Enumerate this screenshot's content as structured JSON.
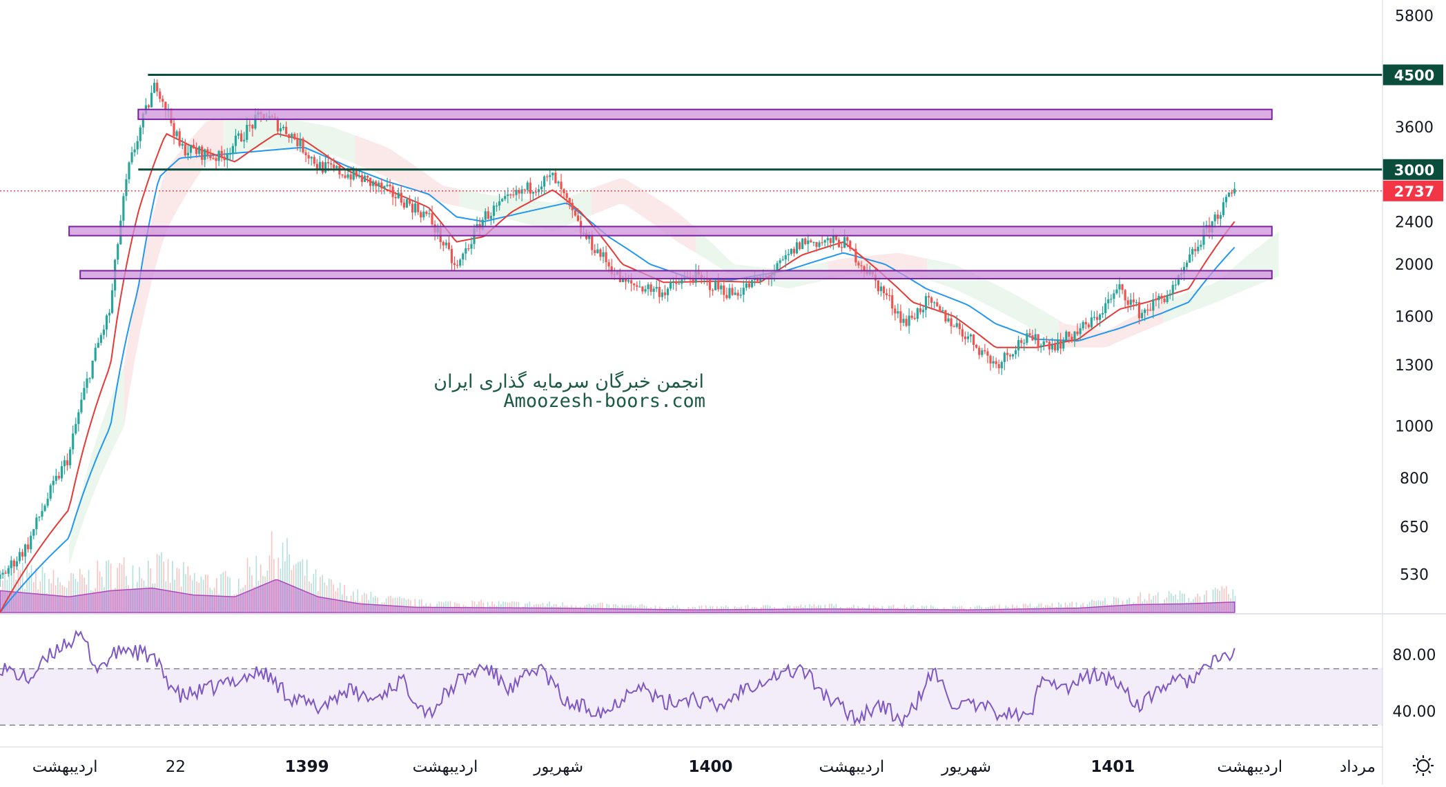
{
  "watermark": {
    "line1": "انجمن خبرگان سرمایه گذاری ایران",
    "line2": "Amoozesh-boors.com"
  },
  "colors": {
    "up": "#26a69a",
    "down": "#ef5350",
    "ma_fast": "#e53935",
    "ma_slow": "#2196f3",
    "resistance_line": "#0b4d3c",
    "zone_fill": "#ce93d8",
    "zone_stroke": "#7b1fa2",
    "volume": "#ba68c8",
    "rsi": "#7e57c2",
    "rsi_band": "#ede7f6",
    "last_price": "#f23645"
  },
  "chart_data": {
    "type": "candlestick",
    "scale": "log",
    "ylim": [
      450,
      6200
    ],
    "y_ticks": [
      5800,
      3600,
      2400,
      2000,
      1600,
      1300,
      1000,
      800,
      650,
      530
    ],
    "time_ticks": [
      {
        "label": "اردیبهشت",
        "bold": false,
        "pos": 0.047
      },
      {
        "label": "22",
        "bold": false,
        "pos": 0.127
      },
      {
        "label": "1399",
        "bold": true,
        "pos": 0.222
      },
      {
        "label": "اردیبهشت",
        "bold": false,
        "pos": 0.322
      },
      {
        "label": "شهریور",
        "bold": false,
        "pos": 0.404
      },
      {
        "label": "1400",
        "bold": true,
        "pos": 0.514
      },
      {
        "label": "اردیبهشت",
        "bold": false,
        "pos": 0.616
      },
      {
        "label": "شهریور",
        "bold": false,
        "pos": 0.699
      },
      {
        "label": "1401",
        "bold": true,
        "pos": 0.805
      },
      {
        "label": "اردیبهشت",
        "bold": false,
        "pos": 0.904
      },
      {
        "label": "مرداد",
        "bold": false,
        "pos": 0.982
      }
    ],
    "price_anchors": [
      [
        0,
        520
      ],
      [
        0.02,
        600
      ],
      [
        0.05,
        880
      ],
      [
        0.08,
        1650
      ],
      [
        0.093,
        3000
      ],
      [
        0.113,
        4350
      ],
      [
        0.13,
        3300
      ],
      [
        0.16,
        3150
      ],
      [
        0.19,
        3800
      ],
      [
        0.21,
        3500
      ],
      [
        0.23,
        3050
      ],
      [
        0.26,
        2900
      ],
      [
        0.29,
        2650
      ],
      [
        0.31,
        2450
      ],
      [
        0.33,
        1950
      ],
      [
        0.35,
        2450
      ],
      [
        0.38,
        2750
      ],
      [
        0.4,
        2900
      ],
      [
        0.42,
        2300
      ],
      [
        0.45,
        1850
      ],
      [
        0.48,
        1780
      ],
      [
        0.5,
        1900
      ],
      [
        0.53,
        1760
      ],
      [
        0.56,
        1930
      ],
      [
        0.58,
        2200
      ],
      [
        0.61,
        2200
      ],
      [
        0.635,
        1830
      ],
      [
        0.655,
        1550
      ],
      [
        0.67,
        1700
      ],
      [
        0.69,
        1550
      ],
      [
        0.72,
        1300
      ],
      [
        0.74,
        1450
      ],
      [
        0.765,
        1420
      ],
      [
        0.79,
        1560
      ],
      [
        0.81,
        1800
      ],
      [
        0.825,
        1620
      ],
      [
        0.85,
        1800
      ],
      [
        0.87,
        2250
      ],
      [
        0.893,
        2737
      ]
    ],
    "last_index": 0.893,
    "ma_fast_anchors": [
      [
        0,
        450
      ],
      [
        0.05,
        700
      ],
      [
        0.08,
        1300
      ],
      [
        0.1,
        2500
      ],
      [
        0.12,
        3500
      ],
      [
        0.14,
        3300
      ],
      [
        0.17,
        3100
      ],
      [
        0.2,
        3500
      ],
      [
        0.22,
        3400
      ],
      [
        0.25,
        3000
      ],
      [
        0.28,
        2750
      ],
      [
        0.31,
        2550
      ],
      [
        0.33,
        2200
      ],
      [
        0.35,
        2250
      ],
      [
        0.37,
        2500
      ],
      [
        0.4,
        2750
      ],
      [
        0.42,
        2500
      ],
      [
        0.45,
        2000
      ],
      [
        0.48,
        1850
      ],
      [
        0.52,
        1860
      ],
      [
        0.55,
        1850
      ],
      [
        0.58,
        2080
      ],
      [
        0.61,
        2200
      ],
      [
        0.635,
        1950
      ],
      [
        0.66,
        1700
      ],
      [
        0.69,
        1600
      ],
      [
        0.72,
        1400
      ],
      [
        0.75,
        1400
      ],
      [
        0.78,
        1450
      ],
      [
        0.81,
        1650
      ],
      [
        0.83,
        1700
      ],
      [
        0.86,
        1800
      ],
      [
        0.893,
        2400
      ]
    ],
    "ma_slow_anchors": [
      [
        0,
        450
      ],
      [
        0.05,
        620
      ],
      [
        0.08,
        1000
      ],
      [
        0.1,
        1800
      ],
      [
        0.115,
        2900
      ],
      [
        0.13,
        3150
      ],
      [
        0.16,
        3200
      ],
      [
        0.19,
        3250
      ],
      [
        0.22,
        3300
      ],
      [
        0.25,
        3050
      ],
      [
        0.28,
        2850
      ],
      [
        0.31,
        2700
      ],
      [
        0.33,
        2450
      ],
      [
        0.35,
        2400
      ],
      [
        0.38,
        2500
      ],
      [
        0.41,
        2600
      ],
      [
        0.44,
        2250
      ],
      [
        0.47,
        2000
      ],
      [
        0.5,
        1880
      ],
      [
        0.53,
        1870
      ],
      [
        0.57,
        1950
      ],
      [
        0.61,
        2100
      ],
      [
        0.64,
        2000
      ],
      [
        0.67,
        1800
      ],
      [
        0.7,
        1680
      ],
      [
        0.72,
        1550
      ],
      [
        0.75,
        1450
      ],
      [
        0.78,
        1440
      ],
      [
        0.81,
        1520
      ],
      [
        0.84,
        1620
      ],
      [
        0.86,
        1700
      ],
      [
        0.893,
        2150
      ]
    ],
    "cloud_anchors": [
      [
        0.05,
        550,
        600
      ],
      [
        0.09,
        1000,
        1300
      ],
      [
        0.12,
        2300,
        3000
      ],
      [
        0.15,
        3100,
        3700
      ],
      [
        0.19,
        3300,
        3800
      ],
      [
        0.24,
        3200,
        3600
      ],
      [
        0.28,
        2900,
        3300
      ],
      [
        0.32,
        2600,
        2800
      ],
      [
        0.35,
        2500,
        2700
      ],
      [
        0.4,
        2300,
        2600
      ],
      [
        0.45,
        2600,
        2900
      ],
      [
        0.49,
        2200,
        2500
      ],
      [
        0.53,
        1900,
        2000
      ],
      [
        0.57,
        1800,
        1950
      ],
      [
        0.61,
        1900,
        2050
      ],
      [
        0.65,
        1950,
        2100
      ],
      [
        0.69,
        1800,
        2000
      ],
      [
        0.73,
        1600,
        1780
      ],
      [
        0.77,
        1400,
        1550
      ],
      [
        0.8,
        1400,
        1500
      ],
      [
        0.84,
        1550,
        1700
      ],
      [
        0.88,
        1700,
        1850
      ],
      [
        0.925,
        1900,
        2300
      ]
    ],
    "volume_anchors": [
      [
        0,
        0.25
      ],
      [
        0.05,
        0.18
      ],
      [
        0.08,
        0.25
      ],
      [
        0.11,
        0.28
      ],
      [
        0.14,
        0.2
      ],
      [
        0.17,
        0.18
      ],
      [
        0.2,
        0.38
      ],
      [
        0.23,
        0.18
      ],
      [
        0.26,
        0.1
      ],
      [
        0.3,
        0.06
      ],
      [
        0.4,
        0.05
      ],
      [
        0.5,
        0.03
      ],
      [
        0.6,
        0.04
      ],
      [
        0.7,
        0.03
      ],
      [
        0.78,
        0.05
      ],
      [
        0.82,
        0.09
      ],
      [
        0.86,
        0.1
      ],
      [
        0.893,
        0.12
      ]
    ],
    "rsi_anchors": [
      [
        0,
        72
      ],
      [
        0.02,
        62
      ],
      [
        0.045,
        88
      ],
      [
        0.06,
        92
      ],
      [
        0.07,
        70
      ],
      [
        0.09,
        85
      ],
      [
        0.11,
        78
      ],
      [
        0.13,
        50
      ],
      [
        0.15,
        55
      ],
      [
        0.17,
        62
      ],
      [
        0.19,
        68
      ],
      [
        0.21,
        50
      ],
      [
        0.23,
        42
      ],
      [
        0.25,
        55
      ],
      [
        0.27,
        48
      ],
      [
        0.29,
        62
      ],
      [
        0.31,
        38
      ],
      [
        0.33,
        60
      ],
      [
        0.35,
        72
      ],
      [
        0.37,
        55
      ],
      [
        0.39,
        72
      ],
      [
        0.41,
        45
      ],
      [
        0.44,
        40
      ],
      [
        0.46,
        60
      ],
      [
        0.48,
        45
      ],
      [
        0.5,
        50
      ],
      [
        0.52,
        42
      ],
      [
        0.54,
        58
      ],
      [
        0.56,
        65
      ],
      [
        0.58,
        70
      ],
      [
        0.6,
        48
      ],
      [
        0.62,
        35
      ],
      [
        0.635,
        45
      ],
      [
        0.655,
        32
      ],
      [
        0.675,
        68
      ],
      [
        0.69,
        45
      ],
      [
        0.71,
        42
      ],
      [
        0.73,
        38
      ],
      [
        0.745,
        35
      ],
      [
        0.755,
        68
      ],
      [
        0.77,
        55
      ],
      [
        0.79,
        66
      ],
      [
        0.81,
        60
      ],
      [
        0.825,
        42
      ],
      [
        0.84,
        58
      ],
      [
        0.86,
        62
      ],
      [
        0.875,
        72
      ],
      [
        0.893,
        82
      ]
    ],
    "overlays": {
      "resistance_lines": [
        {
          "price": 4500,
          "label": "4500",
          "from": 0.107
        },
        {
          "price": 3000,
          "label": "3000",
          "from": 0.1
        }
      ],
      "zones": [
        {
          "low": 3720,
          "high": 3880,
          "from": 0.1,
          "to": 0.92
        },
        {
          "low": 2260,
          "high": 2350,
          "from": 0.05,
          "to": 0.92
        },
        {
          "low": 1880,
          "high": 1945,
          "from": 0.058,
          "to": 0.92
        }
      ],
      "last_price": {
        "price": 2737,
        "label": "2737"
      }
    },
    "rsi": {
      "ylim": [
        15,
        105
      ],
      "ticks": [
        80,
        40
      ],
      "upper": 70,
      "lower": 30,
      "tick_labels": [
        "80.00",
        "40.00"
      ]
    }
  }
}
